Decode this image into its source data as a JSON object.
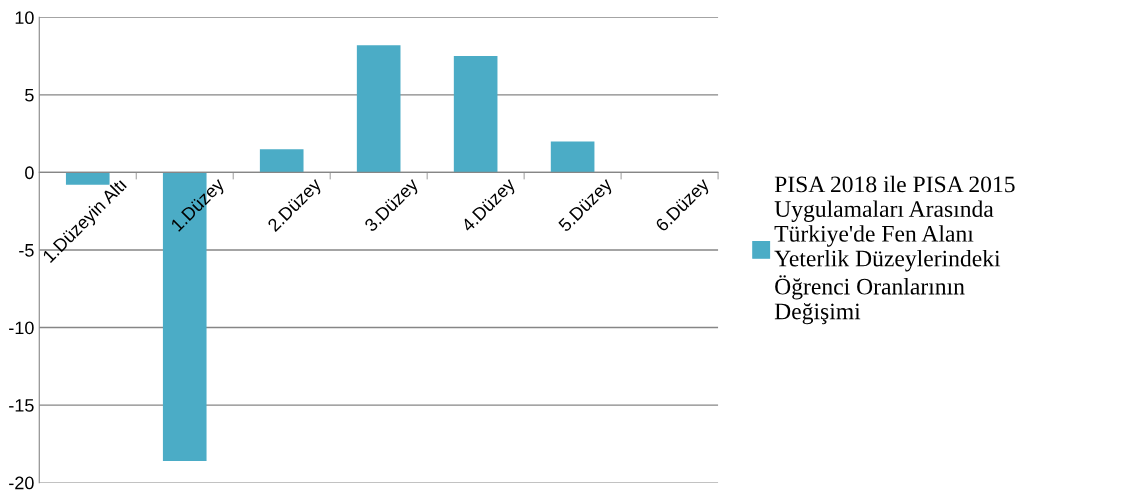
{
  "chart_data": {
    "type": "bar",
    "categories": [
      "1.Düzeyin Altı",
      "1.Düzey",
      "2.Düzey",
      "3.Düzey",
      "4.Düzey",
      "5.Düzey",
      "6.Düzey"
    ],
    "series": [
      {
        "name": "PISA 2018 ile PISA 2015 Uygulamaları Arasında Türkiye'de Fen Alanı Yeterlik Düzeylerindeki Öğrenci Oranlarının Değişimi",
        "color": "#4bacc6",
        "values": [
          -0.8,
          -18.6,
          1.5,
          8.2,
          7.5,
          2.0,
          0
        ]
      }
    ],
    "ylim": [
      -20,
      10
    ],
    "yticks": [
      -20,
      -15,
      -10,
      -5,
      0,
      5,
      10
    ],
    "grid": "y",
    "legend": "right"
  }
}
